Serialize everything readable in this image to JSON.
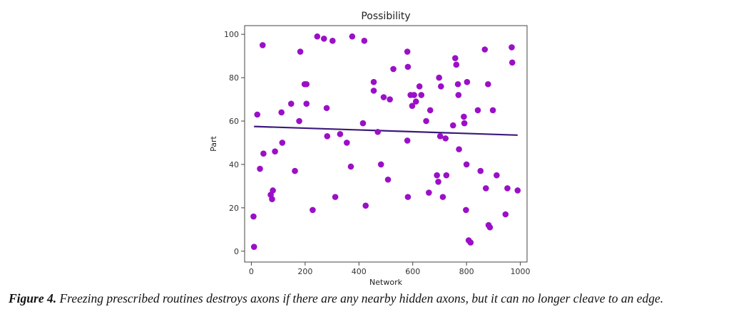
{
  "caption": {
    "label": "Figure 4.",
    "text": "Freezing prescribed routines destroys axons if there are any nearby hidden axons, but it can no longer cleave to an edge."
  },
  "chart_data": {
    "type": "scatter",
    "title": "Possibility",
    "xlabel": "Network",
    "ylabel": "Part",
    "xlim": [
      -25,
      1025
    ],
    "ylim": [
      -5,
      104
    ],
    "xticks": [
      0,
      200,
      400,
      600,
      800,
      1000
    ],
    "yticks": [
      0,
      20,
      40,
      60,
      80,
      100
    ],
    "grid": false,
    "colors": {
      "points": "#9b0fc7",
      "trend": "#3b1a7a"
    },
    "points": [
      {
        "x": 8,
        "y": 16
      },
      {
        "x": 10,
        "y": 2
      },
      {
        "x": 22,
        "y": 63
      },
      {
        "x": 32,
        "y": 38
      },
      {
        "x": 42,
        "y": 95
      },
      {
        "x": 45,
        "y": 45
      },
      {
        "x": 72,
        "y": 26
      },
      {
        "x": 77,
        "y": 24
      },
      {
        "x": 80,
        "y": 28
      },
      {
        "x": 88,
        "y": 46
      },
      {
        "x": 112,
        "y": 64
      },
      {
        "x": 115,
        "y": 50
      },
      {
        "x": 148,
        "y": 68
      },
      {
        "x": 162,
        "y": 37
      },
      {
        "x": 178,
        "y": 60
      },
      {
        "x": 182,
        "y": 92
      },
      {
        "x": 198,
        "y": 77
      },
      {
        "x": 205,
        "y": 77
      },
      {
        "x": 205,
        "y": 68
      },
      {
        "x": 228,
        "y": 19
      },
      {
        "x": 245,
        "y": 99
      },
      {
        "x": 270,
        "y": 98
      },
      {
        "x": 280,
        "y": 66
      },
      {
        "x": 282,
        "y": 53
      },
      {
        "x": 302,
        "y": 97
      },
      {
        "x": 312,
        "y": 25
      },
      {
        "x": 330,
        "y": 54
      },
      {
        "x": 355,
        "y": 50
      },
      {
        "x": 370,
        "y": 39
      },
      {
        "x": 375,
        "y": 99
      },
      {
        "x": 415,
        "y": 59
      },
      {
        "x": 420,
        "y": 97
      },
      {
        "x": 425,
        "y": 21
      },
      {
        "x": 455,
        "y": 78
      },
      {
        "x": 455,
        "y": 74
      },
      {
        "x": 470,
        "y": 55
      },
      {
        "x": 482,
        "y": 40
      },
      {
        "x": 492,
        "y": 71
      },
      {
        "x": 508,
        "y": 33
      },
      {
        "x": 515,
        "y": 70
      },
      {
        "x": 528,
        "y": 84
      },
      {
        "x": 580,
        "y": 92
      },
      {
        "x": 582,
        "y": 85
      },
      {
        "x": 580,
        "y": 51
      },
      {
        "x": 582,
        "y": 25
      },
      {
        "x": 592,
        "y": 72
      },
      {
        "x": 598,
        "y": 67
      },
      {
        "x": 605,
        "y": 72
      },
      {
        "x": 612,
        "y": 69
      },
      {
        "x": 625,
        "y": 76
      },
      {
        "x": 632,
        "y": 72
      },
      {
        "x": 650,
        "y": 60
      },
      {
        "x": 660,
        "y": 27
      },
      {
        "x": 665,
        "y": 65
      },
      {
        "x": 690,
        "y": 35
      },
      {
        "x": 695,
        "y": 32
      },
      {
        "x": 698,
        "y": 80
      },
      {
        "x": 702,
        "y": 53
      },
      {
        "x": 705,
        "y": 76
      },
      {
        "x": 712,
        "y": 25
      },
      {
        "x": 722,
        "y": 52
      },
      {
        "x": 725,
        "y": 35
      },
      {
        "x": 750,
        "y": 58
      },
      {
        "x": 758,
        "y": 89
      },
      {
        "x": 762,
        "y": 86
      },
      {
        "x": 768,
        "y": 77
      },
      {
        "x": 770,
        "y": 72
      },
      {
        "x": 772,
        "y": 47
      },
      {
        "x": 790,
        "y": 62
      },
      {
        "x": 792,
        "y": 59
      },
      {
        "x": 798,
        "y": 19
      },
      {
        "x": 800,
        "y": 40
      },
      {
        "x": 802,
        "y": 78
      },
      {
        "x": 808,
        "y": 5
      },
      {
        "x": 815,
        "y": 4
      },
      {
        "x": 842,
        "y": 65
      },
      {
        "x": 852,
        "y": 37
      },
      {
        "x": 868,
        "y": 93
      },
      {
        "x": 872,
        "y": 29
      },
      {
        "x": 880,
        "y": 77
      },
      {
        "x": 882,
        "y": 12
      },
      {
        "x": 887,
        "y": 11
      },
      {
        "x": 898,
        "y": 65
      },
      {
        "x": 912,
        "y": 35
      },
      {
        "x": 945,
        "y": 17
      },
      {
        "x": 952,
        "y": 29
      },
      {
        "x": 968,
        "y": 94
      },
      {
        "x": 970,
        "y": 87
      },
      {
        "x": 990,
        "y": 28
      }
    ],
    "trendline": {
      "x": [
        10,
        990
      ],
      "y": [
        57.5,
        53.5
      ]
    }
  }
}
